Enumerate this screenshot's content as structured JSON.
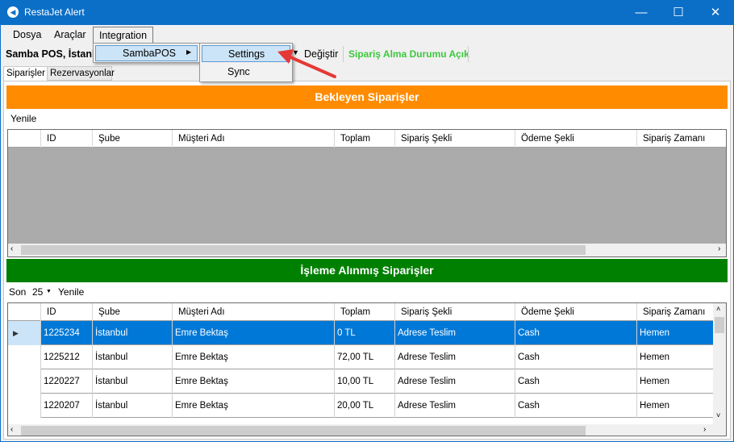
{
  "window": {
    "title": "RestaJet Alert",
    "minimize": "—",
    "maximize": "☐",
    "close": "✕"
  },
  "menu": {
    "items": [
      "Dosya",
      "Araçlar",
      "Integration"
    ],
    "submenu": "SambaPOS",
    "submenu2": [
      "Settings",
      "Sync"
    ]
  },
  "toolbar": {
    "location": "Samba POS, İstanbul",
    "change": "Değiştir",
    "status": "Sipariş Alma Durumu Açık",
    "status_color": "#3cc83c"
  },
  "tabs": [
    "Siparişler",
    "Rezervasyonlar"
  ],
  "pending": {
    "title": "Bekleyen Siparişler",
    "color": "#ff8c00",
    "refresh": "Yenile"
  },
  "processed": {
    "title": "İşleme Alınmış Siparişler",
    "color": "#008000",
    "last_label": "Son",
    "last_value": "25",
    "refresh": "Yenile"
  },
  "columns": [
    "ID",
    "Şube",
    "Müşteri Adı",
    "Toplam",
    "Sipariş Şekli",
    "Ödeme Şekli",
    "Sipariş Zamanı"
  ],
  "rows": [
    [
      "1225234",
      "İstanbul",
      "Emre Bektaş",
      "0 TL",
      "Adrese Teslim",
      "Cash",
      "Hemen"
    ],
    [
      "1225212",
      "İstanbul",
      "Emre Bektaş",
      "72,00 TL",
      "Adrese Teslim",
      "Cash",
      "Hemen"
    ],
    [
      "1220227",
      "İstanbul",
      "Emre Bektaş",
      "10,00 TL",
      "Adrese Teslim",
      "Cash",
      "Hemen"
    ],
    [
      "1220207",
      "İstanbul",
      "Emre Bektaş",
      "20,00 TL",
      "Adrese Teslim",
      "Cash",
      "Hemen"
    ]
  ]
}
